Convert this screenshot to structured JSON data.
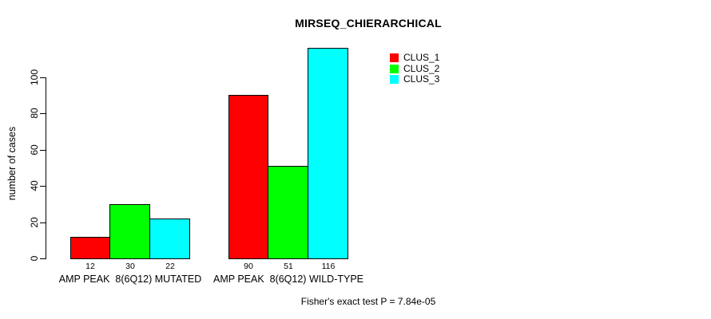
{
  "chart_data": {
    "type": "bar",
    "title": "MIRSEQ_CHIERARCHICAL",
    "ylabel": "number of cases",
    "xlabel": "",
    "categories": [
      "AMP PEAK  8(6Q12) MUTATED",
      "AMP PEAK  8(6Q12) WILD-TYPE"
    ],
    "series": [
      {
        "name": "CLUS_1",
        "color": "#ff0000",
        "values": [
          12,
          90
        ]
      },
      {
        "name": "CLUS_2",
        "color": "#00ff00",
        "values": [
          30,
          51
        ]
      },
      {
        "name": "CLUS_3",
        "color": "#00ffff",
        "values": [
          22,
          116
        ]
      }
    ],
    "bar_value_labels": [
      [
        12,
        30,
        22
      ],
      [
        90,
        51,
        116
      ]
    ],
    "yticks": [
      0,
      20,
      40,
      60,
      80,
      100
    ],
    "ylim": [
      0,
      116
    ],
    "grid": false,
    "show_value_labels": true,
    "legend_position": "top-right",
    "bar_border_color": "#000000",
    "axis_color": "#000000",
    "background_color": "#ffffff"
  },
  "footer": {
    "caption": "Fisher's exact test P = 7.84e-05"
  }
}
